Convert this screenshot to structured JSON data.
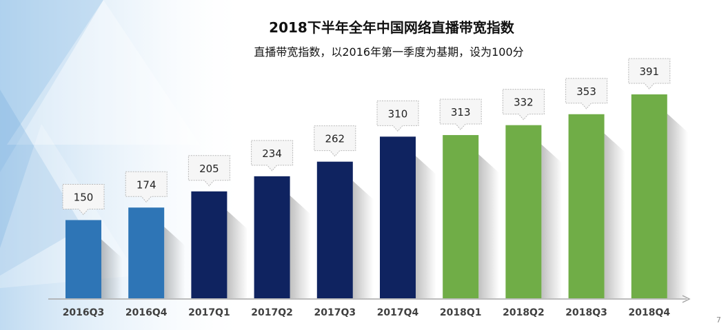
{
  "chart_data": {
    "type": "bar",
    "title": "2018下半年全年中国网络直播带宽指数",
    "subtitle": "直播带宽指数，以2016年第一季度为基期，设为100分",
    "categories": [
      "2016Q3",
      "2016Q4",
      "2017Q1",
      "2017Q2",
      "2017Q3",
      "2017Q4",
      "2018Q1",
      "2018Q2",
      "2018Q3",
      "2018Q4"
    ],
    "values": [
      150,
      174,
      205,
      234,
      262,
      310,
      313,
      332,
      353,
      391
    ],
    "bar_colors": [
      "#2e75b6",
      "#2e75b6",
      "#0f2360",
      "#0f2360",
      "#0f2360",
      "#0f2360",
      "#70ad47",
      "#70ad47",
      "#70ad47",
      "#70ad47"
    ],
    "ylim": [
      0,
      391
    ],
    "xlabel": "",
    "ylabel": "",
    "grid": false
  },
  "page_number": "7"
}
